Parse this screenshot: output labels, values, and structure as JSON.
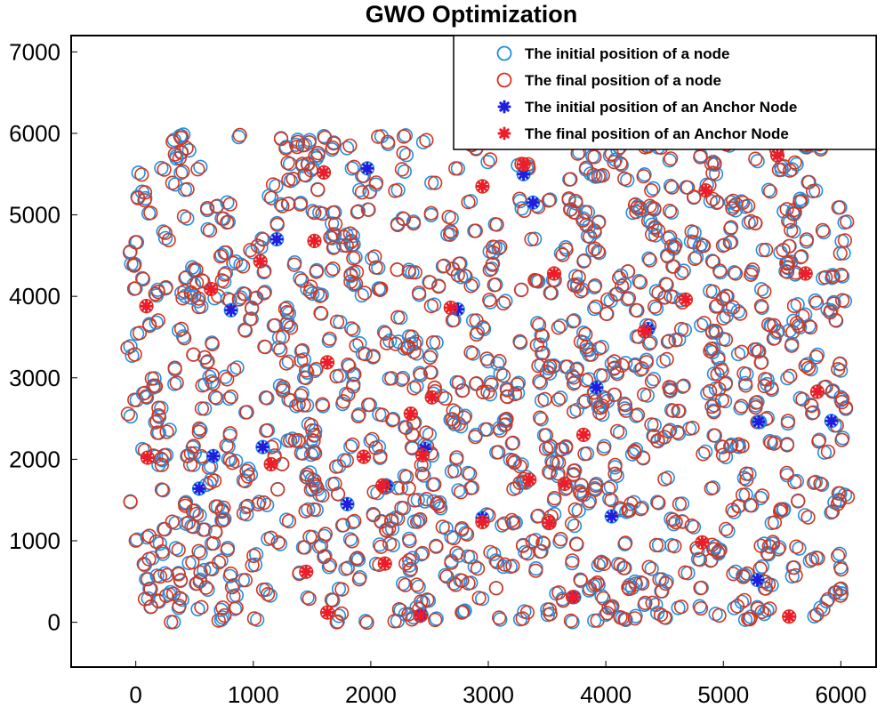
{
  "chart_data": {
    "type": "scatter",
    "title": "GWO Optimization",
    "xlabel": "",
    "ylabel": "",
    "xlim": [
      -550,
      6300
    ],
    "ylim": [
      -550,
      7200
    ],
    "xticks": [
      0,
      1000,
      2000,
      3000,
      4000,
      5000,
      6000
    ],
    "yticks": [
      0,
      1000,
      2000,
      3000,
      4000,
      5000,
      6000,
      7000
    ],
    "legend_position": "top-right",
    "node_count": 1000,
    "node_seed": 7,
    "colors": {
      "initial_node": "#1f8fe0",
      "final_node": "#d8331c",
      "initial_anchor": "#1e1ee0",
      "final_anchor": "#ee1c2a"
    },
    "series": [
      {
        "name": "The initial position of a node",
        "marker": "circle"
      },
      {
        "name": "The final position of a node",
        "marker": "circle"
      },
      {
        "name": "The initial position of an Anchor Node",
        "marker": "star",
        "points": [
          [
            1970,
            5570
          ],
          [
            3300,
            5500
          ],
          [
            3380,
            5150
          ],
          [
            1200,
            4700
          ],
          [
            810,
            3830
          ],
          [
            4360,
            3600
          ],
          [
            3920,
            2880
          ],
          [
            5920,
            2470
          ],
          [
            5300,
            2460
          ],
          [
            1080,
            2150
          ],
          [
            660,
            2040
          ],
          [
            540,
            1640
          ],
          [
            2130,
            1680
          ],
          [
            1800,
            1450
          ],
          [
            2460,
            2130
          ],
          [
            4050,
            1300
          ],
          [
            5290,
            520
          ],
          [
            2430,
            90
          ],
          [
            3730,
            310
          ],
          [
            2950,
            1280
          ],
          [
            2740,
            3840
          ]
        ]
      },
      {
        "name": "The final position of an Anchor Node",
        "marker": "star",
        "points": [
          [
            2950,
            5350
          ],
          [
            3300,
            5620
          ],
          [
            1600,
            5520
          ],
          [
            3560,
            4280
          ],
          [
            4850,
            5300
          ],
          [
            5460,
            5730
          ],
          [
            5700,
            4280
          ],
          [
            1520,
            4680
          ],
          [
            1060,
            4430
          ],
          [
            640,
            4090
          ],
          [
            90,
            3880
          ],
          [
            1630,
            3190
          ],
          [
            2340,
            2560
          ],
          [
            2520,
            2760
          ],
          [
            2680,
            3860
          ],
          [
            4330,
            3570
          ],
          [
            4680,
            3960
          ],
          [
            5800,
            2830
          ],
          [
            3810,
            2300
          ],
          [
            3350,
            1750
          ],
          [
            3650,
            1700
          ],
          [
            3520,
            1220
          ],
          [
            4820,
            980
          ],
          [
            100,
            2020
          ],
          [
            1150,
            1940
          ],
          [
            1940,
            2030
          ],
          [
            2440,
            2050
          ],
          [
            2950,
            1230
          ],
          [
            2100,
            1680
          ],
          [
            1450,
            620
          ],
          [
            2120,
            720
          ],
          [
            1630,
            120
          ],
          [
            2420,
            80
          ],
          [
            3720,
            310
          ],
          [
            5560,
            70
          ]
        ]
      }
    ]
  }
}
